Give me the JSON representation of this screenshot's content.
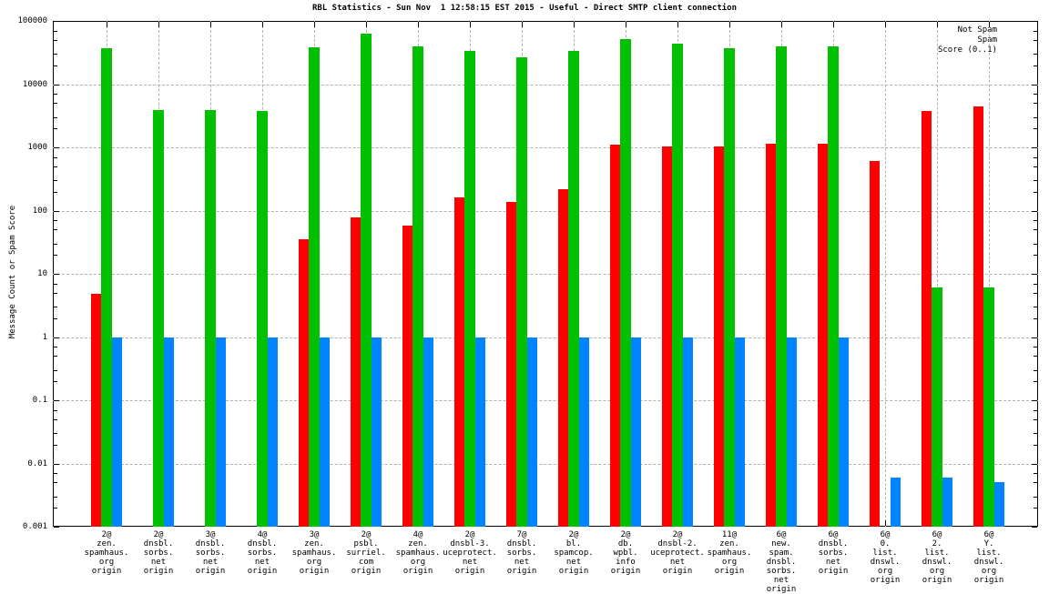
{
  "title": "RBL Statistics - Sun Nov  1 12:58:15 EST 2015 - Useful - Direct SMTP client connection",
  "ylabel": "Message Count or Spam Score",
  "legend": [
    {
      "label": "Not Spam",
      "color": "#ff0000"
    },
    {
      "label": "Spam",
      "color": "#00c000"
    },
    {
      "label": "Score (0..1)",
      "color": "#0084ff"
    }
  ],
  "chart_data": {
    "type": "bar",
    "yscale": "log",
    "ylim": [
      0.001,
      100000
    ],
    "grid": true,
    "legend_position": "top-right",
    "ytick_labels": [
      "100000",
      "10000",
      "1000",
      "100",
      "10",
      "1",
      "0.1",
      "0.01",
      "0.001"
    ],
    "categories": [
      [
        "2@",
        "zen.",
        "spamhaus.",
        "org",
        "origin"
      ],
      [
        "2@",
        "dnsbl.",
        "sorbs.",
        "net",
        "origin"
      ],
      [
        "3@",
        "dnsbl.",
        "sorbs.",
        "net",
        "origin"
      ],
      [
        "4@",
        "dnsbl.",
        "sorbs.",
        "net",
        "origin"
      ],
      [
        "3@",
        "zen.",
        "spamhaus.",
        "org",
        "origin"
      ],
      [
        "2@",
        "psbl.",
        "surriel.",
        "com",
        "origin"
      ],
      [
        "4@",
        "zen.",
        "spamhaus.",
        "org",
        "origin"
      ],
      [
        "2@",
        "dnsbl-3.",
        "uceprotect.",
        "net",
        "origin"
      ],
      [
        "7@",
        "dnsbl.",
        "sorbs.",
        "net",
        "origin"
      ],
      [
        "2@",
        "bl.",
        "spamcop.",
        "net",
        "origin"
      ],
      [
        "2@",
        "db.",
        "wpbl.",
        "info",
        "origin"
      ],
      [
        "2@",
        "dnsbl-2.",
        "uceprotect.",
        "net",
        "origin"
      ],
      [
        "11@",
        "zen.",
        "spamhaus.",
        "org",
        "origin"
      ],
      [
        "6@",
        "new.",
        "spam.",
        "dnsbl.",
        "sorbs.",
        "net",
        "origin"
      ],
      [
        "6@",
        "dnsbl.",
        "sorbs.",
        "net",
        "origin"
      ],
      [
        "6@",
        "0.",
        "list.",
        "dnswl.",
        "org",
        "origin"
      ],
      [
        "6@",
        "2.",
        "list.",
        "dnswl.",
        "org",
        "origin"
      ],
      [
        "6@",
        "Y.",
        "list.",
        "dnswl.",
        "org",
        "origin"
      ]
    ],
    "series": [
      {
        "name": "Not Spam",
        "color": "#ff0000",
        "values": [
          4.8,
          null,
          null,
          null,
          35,
          78,
          57,
          160,
          135,
          220,
          1100,
          1050,
          1050,
          1150,
          1150,
          600,
          3800,
          4500
        ]
      },
      {
        "name": "Spam",
        "color": "#00c000",
        "values": [
          37000,
          3900,
          3900,
          3800,
          38000,
          63000,
          39000,
          34000,
          27000,
          33000,
          51000,
          43000,
          37000,
          40000,
          40000,
          null,
          6,
          6
        ]
      },
      {
        "name": "Score (0..1)",
        "color": "#0084ff",
        "values": [
          1,
          1,
          1,
          1,
          1,
          1,
          1,
          1,
          1,
          1,
          1,
          1,
          1,
          1,
          1,
          0.006,
          0.006,
          0.005
        ]
      }
    ]
  }
}
